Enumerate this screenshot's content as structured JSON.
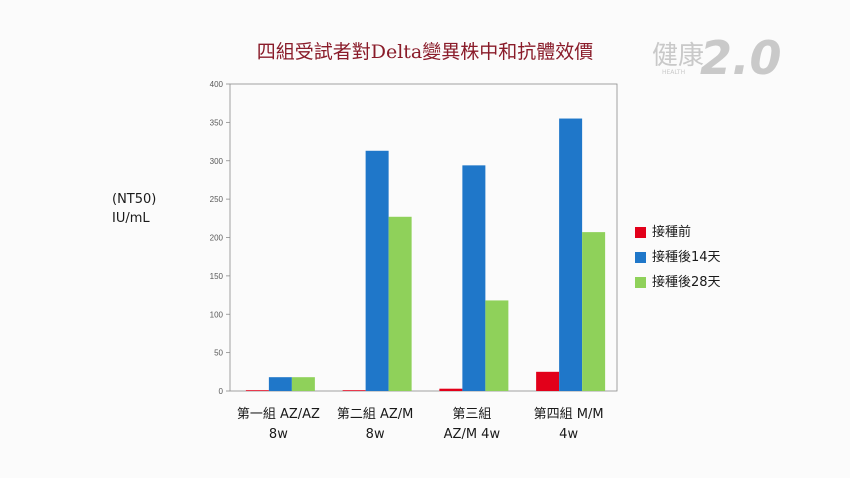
{
  "chart_data": {
    "type": "bar",
    "title": "四組受試者對Delta變異株中和抗體效價",
    "ylabel_lines": [
      "(NT50)",
      "IU/mL"
    ],
    "ylim": [
      0,
      400
    ],
    "yticks": [
      0,
      50,
      100,
      150,
      200,
      250,
      300,
      350,
      400
    ],
    "grid": false,
    "legend_position": "right",
    "categories": [
      [
        "第一組 AZ/AZ",
        "8w"
      ],
      [
        "第二組 AZ/M",
        "8w"
      ],
      [
        "第三組",
        "AZ/M 4w"
      ],
      [
        "第四組  M/M",
        "4w"
      ]
    ],
    "series": [
      {
        "name": "接種前",
        "color": "#e2001a",
        "values": [
          1,
          1,
          3,
          25
        ]
      },
      {
        "name": "接種後14天",
        "color": "#1f77c9",
        "values": [
          18,
          313,
          294,
          355
        ]
      },
      {
        "name": "接種後28天",
        "color": "#8fd15a",
        "values": [
          18,
          227,
          118,
          207
        ]
      }
    ]
  },
  "watermark": {
    "text_main": "健康",
    "text_version": "2.0",
    "text_small": "HEALTH"
  }
}
